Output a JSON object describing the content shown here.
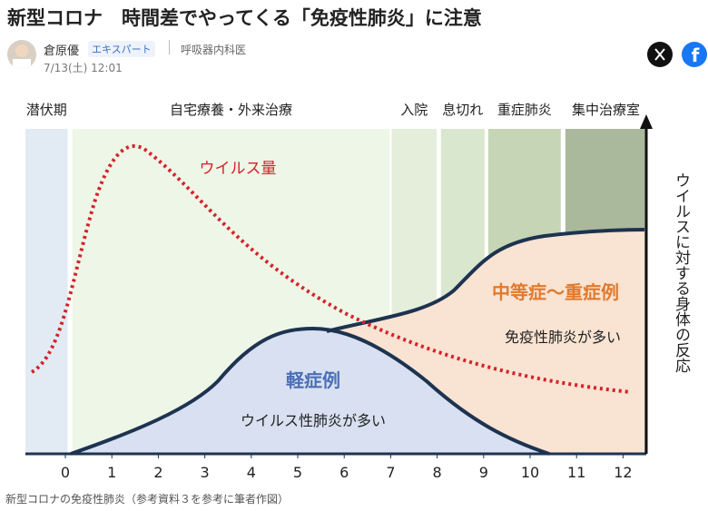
{
  "header": {
    "title": "新型コロナ　時間差でやってくる「免疫性肺炎」に注意",
    "author": "倉原優",
    "badge": "エキスパート",
    "job": "呼吸器内科医",
    "date": "7/13(土) 12:01"
  },
  "chart_data": {
    "type": "area",
    "phases": [
      {
        "label": "潜伏期",
        "from": -0.86,
        "to": 0.05,
        "color": "#e2ebf4"
      },
      {
        "label": "自宅療養・外来治療",
        "from": 0.15,
        "to": 6.98,
        "color": "#eef6e7"
      },
      {
        "label": "入院",
        "from": 7.02,
        "to": 7.99,
        "color": "#e4eedb"
      },
      {
        "label": "息切れ",
        "from": 8.08,
        "to": 9.02,
        "color": "#dae7cf"
      },
      {
        "label": "重症肺炎",
        "from": 9.1,
        "to": 10.66,
        "color": "#c6d5b6"
      },
      {
        "label": "集中治療室",
        "from": 10.76,
        "to": 12.5,
        "color": "#aab99c"
      }
    ],
    "xlim": [
      -0.86,
      12.5
    ],
    "xticks": [
      0,
      1,
      2,
      3,
      4,
      5,
      6,
      7,
      8,
      9,
      10,
      11,
      12
    ],
    "ylabel": "ウイルスに対する身体の反応",
    "annotations": {
      "virus": "ウイルス量",
      "severe": "中等症～重症例",
      "severe_note": "免疫性肺炎が多い",
      "mild": "軽症例",
      "mild_note": "ウイルス性肺炎が多い"
    }
  },
  "caption": "新型コロナの免疫性肺炎（参考資料３を参考に筆者作図）"
}
